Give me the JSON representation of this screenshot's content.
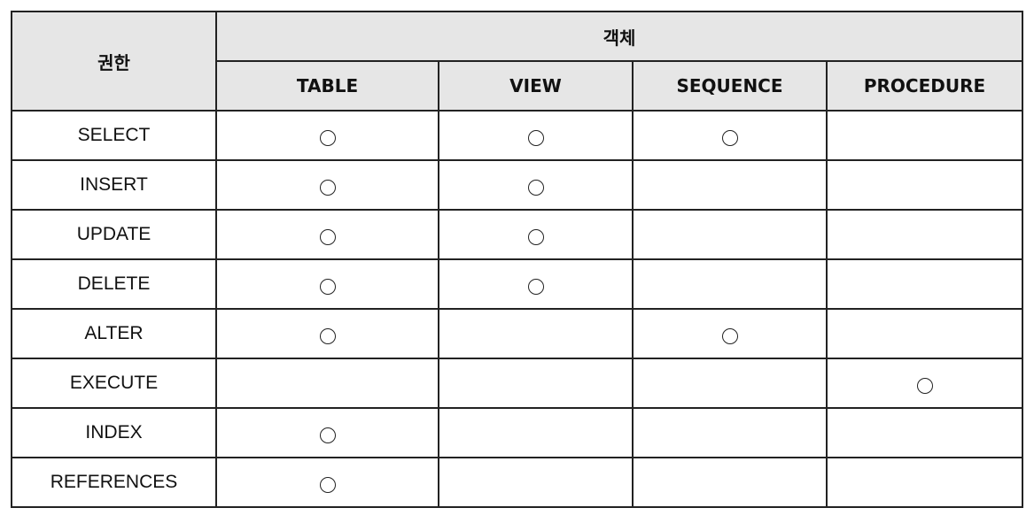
{
  "table": {
    "row_header_label": "권한",
    "group_header_label": "객체",
    "columns": [
      "TABLE",
      "VIEW",
      "SEQUENCE",
      "PROCEDURE"
    ],
    "mark_symbol_name": "circle-mark",
    "rows": [
      {
        "privilege": "SELECT",
        "marks": [
          true,
          true,
          true,
          false
        ]
      },
      {
        "privilege": "INSERT",
        "marks": [
          true,
          true,
          false,
          false
        ]
      },
      {
        "privilege": "UPDATE",
        "marks": [
          true,
          true,
          false,
          false
        ]
      },
      {
        "privilege": "DELETE",
        "marks": [
          true,
          true,
          false,
          false
        ]
      },
      {
        "privilege": "ALTER",
        "marks": [
          true,
          false,
          true,
          false
        ]
      },
      {
        "privilege": "EXECUTE",
        "marks": [
          false,
          false,
          false,
          true
        ]
      },
      {
        "privilege": "INDEX",
        "marks": [
          true,
          false,
          false,
          false
        ]
      },
      {
        "privilege": "REFERENCES",
        "marks": [
          true,
          false,
          false,
          false
        ]
      }
    ]
  }
}
